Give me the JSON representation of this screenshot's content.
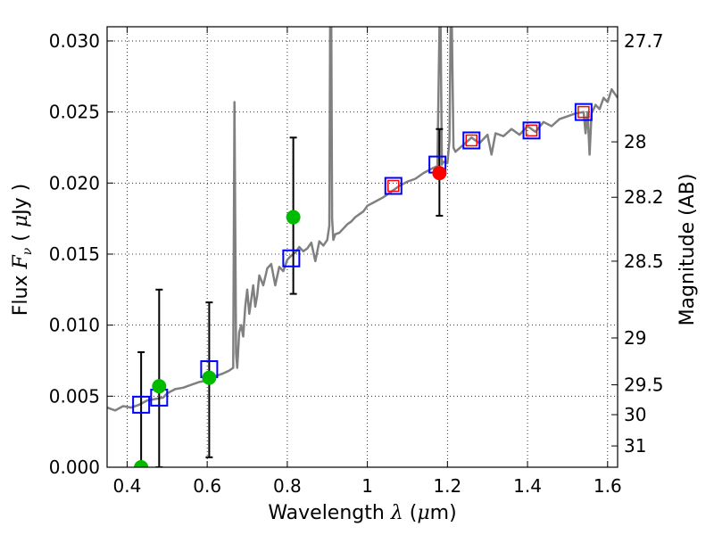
{
  "chart_data": {
    "type": "scatter",
    "xlabel_prefix": "Wavelength ",
    "xlabel_symbol": "λ",
    "xlabel_unit_open": " (",
    "xlabel_mu": "μ",
    "xlabel_unit_close": "m)",
    "ylabel_prefix": "Flux ",
    "ylabel_symbol": "F",
    "ylabel_sub": "ν",
    "ylabel_unit_open": " ( ",
    "ylabel_mu": "μ",
    "ylabel_unit_close": "Jy )",
    "y2label": "Magnitude (AB)",
    "xlim": [
      0.35,
      1.625
    ],
    "ylim": [
      0.0,
      0.031
    ],
    "grid": true,
    "x_ticks": [
      0.4,
      0.6,
      0.8,
      1.0,
      1.2,
      1.4,
      1.6
    ],
    "x_tick_labels": [
      "0.4",
      "0.6",
      "0.8",
      "1",
      "1.2",
      "1.4",
      "1.6"
    ],
    "y_ticks": [
      0.0,
      0.005,
      0.01,
      0.015,
      0.02,
      0.025,
      0.03
    ],
    "y_tick_labels": [
      "0.000",
      "0.005",
      "0.010",
      "0.015",
      "0.020",
      "0.025",
      "0.030"
    ],
    "y2_ticks": [
      {
        "label": "27.7",
        "flux": 0.03
      },
      {
        "label": "28",
        "flux": 0.0229
      },
      {
        "label": "28.2",
        "flux": 0.019
      },
      {
        "label": "28.5",
        "flux": 0.0145
      },
      {
        "label": "29",
        "flux": 0.0091
      },
      {
        "label": "29.5",
        "flux": 0.0058
      },
      {
        "label": "30",
        "flux": 0.0037
      },
      {
        "label": "31",
        "flux": 0.0015
      }
    ],
    "series": [
      {
        "name": "model spectrum",
        "kind": "line",
        "color": "#808080",
        "x": [
          0.35,
          0.37,
          0.39,
          0.41,
          0.43,
          0.45,
          0.47,
          0.49,
          0.5,
          0.52,
          0.54,
          0.56,
          0.58,
          0.6,
          0.62,
          0.64,
          0.655,
          0.665,
          0.668,
          0.672,
          0.675,
          0.68,
          0.685,
          0.69,
          0.695,
          0.7,
          0.705,
          0.71,
          0.715,
          0.72,
          0.725,
          0.73,
          0.74,
          0.75,
          0.76,
          0.77,
          0.78,
          0.79,
          0.8,
          0.81,
          0.82,
          0.83,
          0.84,
          0.85,
          0.86,
          0.87,
          0.88,
          0.89,
          0.9,
          0.905,
          0.907,
          0.91,
          0.912,
          0.915,
          0.92,
          0.93,
          0.94,
          0.95,
          0.96,
          0.97,
          0.98,
          0.99,
          1.0,
          1.02,
          1.04,
          1.06,
          1.08,
          1.1,
          1.12,
          1.14,
          1.16,
          1.175,
          1.18,
          1.183,
          1.186,
          1.19,
          1.2,
          1.205,
          1.208,
          1.211,
          1.215,
          1.22,
          1.24,
          1.26,
          1.28,
          1.3,
          1.31,
          1.32,
          1.34,
          1.36,
          1.38,
          1.4,
          1.42,
          1.44,
          1.46,
          1.48,
          1.5,
          1.52,
          1.54,
          1.545,
          1.55,
          1.555,
          1.56,
          1.57,
          1.58,
          1.59,
          1.6,
          1.61,
          1.625
        ],
        "y": [
          0.0042,
          0.004,
          0.0043,
          0.0042,
          0.0044,
          0.0047,
          0.0048,
          0.0049,
          0.0052,
          0.0055,
          0.0056,
          0.0058,
          0.006,
          0.0061,
          0.0064,
          0.0066,
          0.0068,
          0.007,
          0.0257,
          0.008,
          0.007,
          0.0095,
          0.01,
          0.0092,
          0.0113,
          0.0125,
          0.0108,
          0.0118,
          0.0128,
          0.0113,
          0.0121,
          0.0135,
          0.0128,
          0.014,
          0.0143,
          0.0128,
          0.0141,
          0.0138,
          0.0146,
          0.0149,
          0.0151,
          0.0155,
          0.0152,
          0.0154,
          0.0158,
          0.0145,
          0.0159,
          0.0156,
          0.016,
          0.017,
          0.031,
          0.031,
          0.0175,
          0.016,
          0.0164,
          0.0165,
          0.0168,
          0.0171,
          0.0173,
          0.0176,
          0.0178,
          0.018,
          0.0184,
          0.0187,
          0.019,
          0.0194,
          0.0198,
          0.0201,
          0.0203,
          0.0207,
          0.021,
          0.0212,
          0.031,
          0.031,
          0.0213,
          0.0215,
          0.0214,
          0.023,
          0.031,
          0.031,
          0.0225,
          0.0222,
          0.0227,
          0.0232,
          0.0228,
          0.0234,
          0.022,
          0.0235,
          0.0233,
          0.0238,
          0.0234,
          0.024,
          0.0236,
          0.0243,
          0.024,
          0.0245,
          0.0247,
          0.0249,
          0.025,
          0.0235,
          0.025,
          0.022,
          0.0249,
          0.0255,
          0.0252,
          0.026,
          0.0257,
          0.0266,
          0.026
        ]
      },
      {
        "name": "model photometry",
        "kind": "open-square",
        "color": "#0000ff",
        "x": [
          0.435,
          0.48,
          0.605,
          0.81,
          1.065,
          1.175,
          1.26,
          1.41,
          1.54
        ],
        "y": [
          0.0044,
          0.0049,
          0.0069,
          0.0147,
          0.0198,
          0.0213,
          0.023,
          0.0237,
          0.025
        ]
      },
      {
        "name": "observed photometry",
        "kind": "small-square",
        "color": "#ff0000",
        "x": [
          1.065,
          1.26,
          1.41,
          1.54
        ],
        "y": [
          0.0198,
          0.023,
          0.0237,
          0.025
        ]
      },
      {
        "name": "optical detections",
        "kind": "filled-circle",
        "color": "#00bb00",
        "x": [
          0.435,
          0.48,
          0.605,
          0.815
        ],
        "y": [
          0.0,
          0.0057,
          0.0063,
          0.0176
        ]
      },
      {
        "name": "NIR detection",
        "kind": "filled-circle",
        "color": "#ff0000",
        "x": [
          1.18
        ],
        "y": [
          0.0207
        ]
      },
      {
        "name": "error bars",
        "kind": "errorbar",
        "color": "#000000",
        "x": [
          0.435,
          0.48,
          0.605,
          0.815,
          1.18
        ],
        "ylow": [
          0.0,
          0.0,
          0.0007,
          0.0122,
          0.0177
        ],
        "yhigh": [
          0.0081,
          0.0125,
          0.0116,
          0.0232,
          0.0238
        ]
      }
    ]
  }
}
